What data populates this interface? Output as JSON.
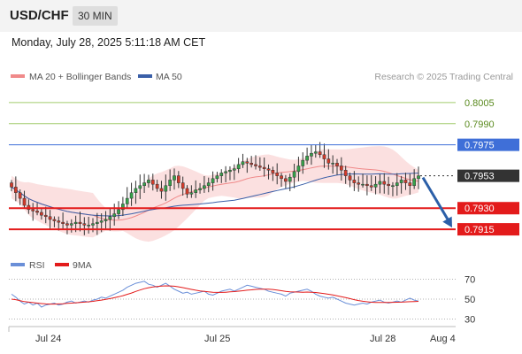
{
  "header": {
    "symbol": "USD/CHF",
    "timeframe": "30 MIN"
  },
  "timestamp": "Monday, July 28, 2025 5:11:18 AM CET",
  "source": "Research © 2025 Trading Central",
  "colors": {
    "ma20": "#f08a8a",
    "ma50": "#3a5fa8",
    "resistance": "#3f6fd8",
    "support": "#e31b1b",
    "target": "#8cc04a",
    "current": "#333333",
    "rsi": "#6a8fd8",
    "rsi_ma": "#e31b1b",
    "bollinger": "#f9d6d6",
    "arrow": "#2b5fa8"
  },
  "chart_data": [
    {
      "type": "candlestick",
      "legend": [
        {
          "name": "MA 20 + Bollinger Bands",
          "color": "#f08a8a"
        },
        {
          "name": "MA 50",
          "color": "#3a5fa8"
        }
      ],
      "ylim": [
        0.7905,
        0.8015
      ],
      "x_ticks": [
        "Jul 24",
        "Jul 25",
        "Jul 28",
        "Aug 4"
      ],
      "levels": [
        {
          "label": "0.8005",
          "value": 0.8005,
          "kind": "target"
        },
        {
          "label": "0.7990",
          "value": 0.799,
          "kind": "target"
        },
        {
          "label": "0.7975",
          "value": 0.7975,
          "kind": "resistance"
        },
        {
          "label": "0.7953",
          "value": 0.7953,
          "kind": "current"
        },
        {
          "label": "0.7930",
          "value": 0.793,
          "kind": "support"
        },
        {
          "label": "0.7915",
          "value": 0.7915,
          "kind": "support"
        }
      ],
      "closes": [
        0.7945,
        0.7941,
        0.7937,
        0.7932,
        0.7929,
        0.7928,
        0.7927,
        0.7925,
        0.7924,
        0.7922,
        0.7921,
        0.792,
        0.7919,
        0.7918,
        0.7919,
        0.792,
        0.7919,
        0.7918,
        0.7918,
        0.7919,
        0.792,
        0.7921,
        0.7922,
        0.7924,
        0.7926,
        0.7929,
        0.7933,
        0.7937,
        0.7941,
        0.7944,
        0.7946,
        0.7948,
        0.795,
        0.7947,
        0.7944,
        0.7942,
        0.7946,
        0.795,
        0.7953,
        0.7948,
        0.7944,
        0.794,
        0.7941,
        0.7943,
        0.7944,
        0.7946,
        0.7948,
        0.7951,
        0.7953,
        0.7955,
        0.7956,
        0.7957,
        0.7958,
        0.7961,
        0.7963,
        0.7962,
        0.7961,
        0.796,
        0.7959,
        0.7958,
        0.7957,
        0.7955,
        0.7953,
        0.7951,
        0.7949,
        0.7952,
        0.7956,
        0.796,
        0.7964,
        0.7967,
        0.7969,
        0.797,
        0.7968,
        0.7965,
        0.7962,
        0.7962,
        0.796,
        0.7957,
        0.7953,
        0.795,
        0.7948,
        0.7947,
        0.7947,
        0.7946,
        0.7945,
        0.7947,
        0.7949,
        0.7947,
        0.7946,
        0.7946,
        0.7948,
        0.795,
        0.7948,
        0.7946,
        0.7951,
        0.7953
      ],
      "annotation": {
        "type": "arrow",
        "from": 0.7953,
        "to": 0.7915,
        "direction": "down"
      }
    },
    {
      "type": "line",
      "legend": [
        {
          "name": "RSI",
          "color": "#6a8fd8"
        },
        {
          "name": "9MA",
          "color": "#e31b1b"
        }
      ],
      "ylim": [
        25,
        75
      ],
      "y_ticks": [
        "70",
        "50",
        "30"
      ],
      "series": [
        {
          "name": "RSI",
          "values": [
            55,
            52,
            48,
            45,
            47,
            44,
            46,
            42,
            44,
            45,
            46,
            44,
            45,
            47,
            48,
            46,
            47,
            48,
            47,
            49,
            50,
            52,
            51,
            53,
            55,
            57,
            59,
            62,
            64,
            66,
            67,
            68,
            65,
            64,
            62,
            64,
            66,
            63,
            60,
            58,
            56,
            57,
            55,
            56,
            57,
            58,
            55,
            54,
            56,
            58,
            59,
            60,
            58,
            60,
            62,
            64,
            63,
            62,
            61,
            60,
            58,
            57,
            56,
            55,
            53,
            56,
            57,
            58,
            59,
            60,
            58,
            55,
            53,
            52,
            51,
            52,
            50,
            48,
            46,
            45,
            44,
            45,
            46,
            45,
            47,
            48,
            49,
            47,
            46,
            47,
            48,
            47,
            49,
            51,
            49,
            48
          ]
        },
        {
          "name": "9MA",
          "values": [
            50,
            49.5,
            48.5,
            47.5,
            47,
            46.5,
            46,
            45.5,
            45.2,
            45,
            45,
            45.2,
            45.4,
            45.7,
            46,
            46.3,
            46.6,
            47,
            47.3,
            47.8,
            48.4,
            49,
            49.7,
            50.5,
            51.4,
            52.4,
            53.5,
            54.8,
            56.2,
            57.8,
            59.2,
            60.5,
            61.5,
            62.2,
            62.8,
            63.2,
            63.4,
            63.3,
            63,
            62.4,
            61.6,
            60.7,
            59.8,
            59,
            58.3,
            57.8,
            57.3,
            57,
            56.8,
            56.8,
            57,
            57.3,
            57.6,
            58,
            58.5,
            59,
            59.4,
            59.8,
            60,
            60.1,
            60,
            59.7,
            59.2,
            58.5,
            57.8,
            57.4,
            57.2,
            57.1,
            57,
            57.1,
            57,
            56.7,
            56.2,
            55.6,
            54.9,
            54.2,
            53.4,
            52.5,
            51.5,
            50.5,
            49.5,
            48.6,
            47.9,
            47.3,
            46.9,
            46.7,
            46.6,
            46.6,
            46.7,
            46.8,
            46.9,
            47,
            47.2,
            47.4,
            47.6,
            47.8
          ]
        }
      ]
    }
  ]
}
